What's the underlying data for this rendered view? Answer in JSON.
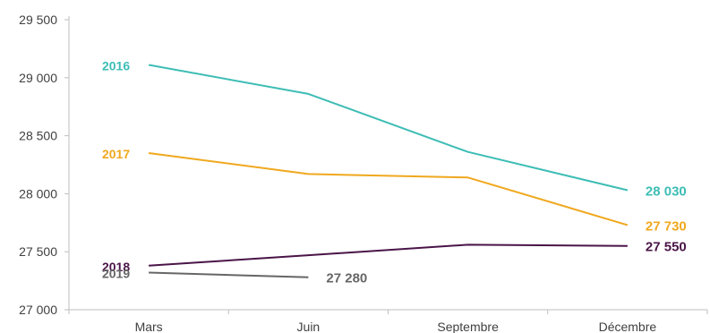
{
  "chart_data": {
    "type": "line",
    "categories": [
      "Mars",
      "Juin",
      "Septembre",
      "Décembre"
    ],
    "ylim": [
      27000,
      29500
    ],
    "yticks": [
      27000,
      27500,
      28000,
      28500,
      29000,
      29500
    ],
    "ytick_labels": [
      "27 000",
      "27 500",
      "28 000",
      "28 500",
      "29 000",
      "29 500"
    ],
    "grid": false,
    "series": [
      {
        "name": "2016",
        "color": "#3dbdb5",
        "values": [
          29110,
          28860,
          28360,
          28030
        ],
        "end_label": "28 030"
      },
      {
        "name": "2017",
        "color": "#f0a81e",
        "values": [
          28350,
          28170,
          28140,
          27730
        ],
        "end_label": "27 730"
      },
      {
        "name": "2018",
        "color": "#4a1448",
        "values": [
          27380,
          27470,
          27560,
          27550
        ],
        "end_label": "27 550"
      },
      {
        "name": "2019",
        "color": "#666666",
        "values": [
          27320,
          27280,
          null,
          null
        ],
        "end_label": "27 280"
      }
    ]
  }
}
